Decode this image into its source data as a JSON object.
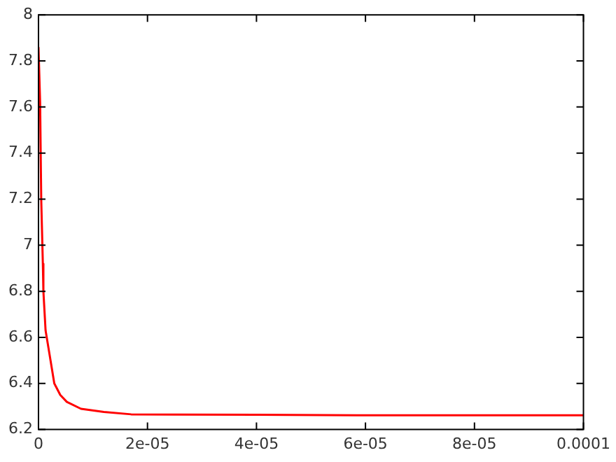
{
  "chart_data": {
    "type": "line",
    "x": [
      0,
      3e-07,
      5e-07,
      8e-07,
      9e-07,
      1.3e-06,
      2e-06,
      2.9e-06,
      4e-06,
      5.2e-06,
      7.8e-06,
      1.2e-05,
      1.7e-05,
      2.5e-05,
      4e-05,
      6e-05,
      8e-05,
      0.0001
    ],
    "series": [
      {
        "color": "#ff0000",
        "values": [
          7.86,
          7.62,
          7.2,
          6.92,
          6.8,
          6.63,
          6.53,
          6.4,
          6.35,
          6.32,
          6.29,
          6.276,
          6.266,
          6.265,
          6.264,
          6.262,
          6.262,
          6.262
        ]
      }
    ],
    "xlim": [
      0,
      0.0001
    ],
    "xticks": [
      0,
      {
        "value": 2e-05,
        "label": "2e-05"
      },
      {
        "value": 4e-05,
        "label": "4e-05"
      },
      {
        "value": 6e-05,
        "label": "6e-05"
      },
      {
        "value": 8e-05,
        "label": "8e-05"
      },
      0.0001
    ],
    "ylim": [
      6.2,
      8
    ],
    "yticks": [
      6.2,
      6.4,
      6.6,
      6.8,
      7,
      7.2,
      7.4,
      7.6,
      7.8,
      8
    ],
    "grid": false,
    "legend": false,
    "marker": "none",
    "line_style": "solid"
  }
}
